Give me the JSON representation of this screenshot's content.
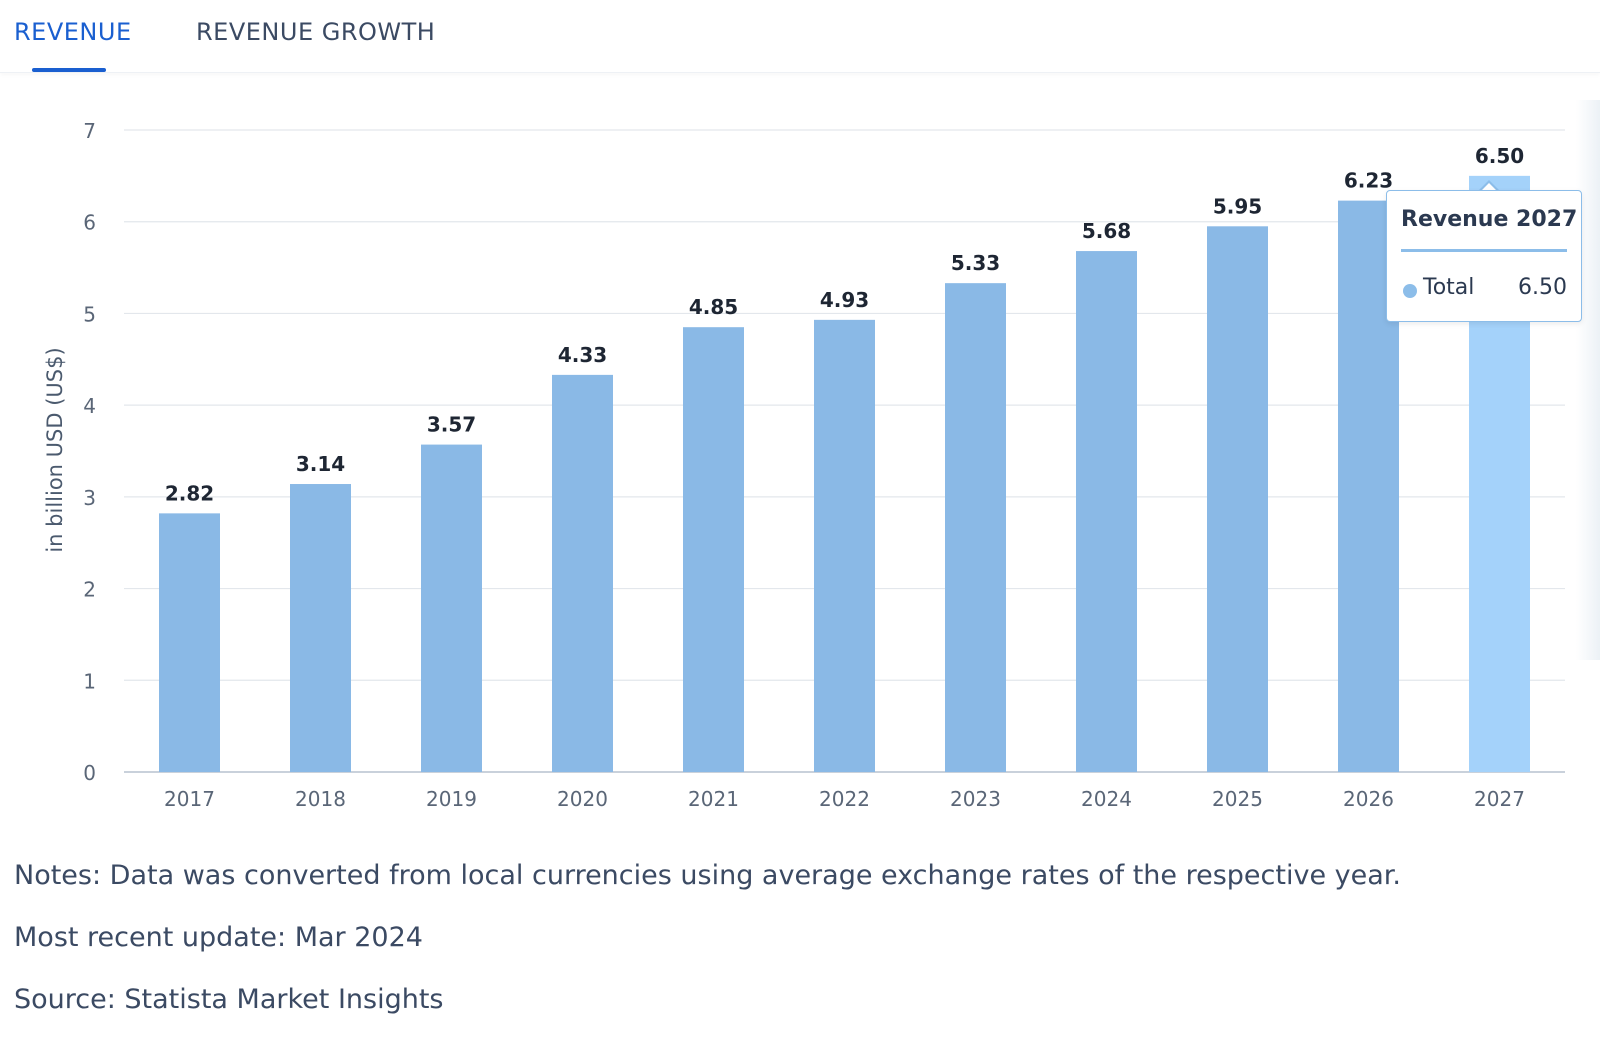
{
  "tabs": [
    {
      "label": "REVENUE",
      "active": true
    },
    {
      "label": "REVENUE GROWTH",
      "active": false
    }
  ],
  "chart_data": {
    "type": "bar",
    "title": "",
    "xlabel": "",
    "ylabel": "in billion USD (US$)",
    "ylim": [
      0,
      7
    ],
    "yticks": [
      0,
      1,
      2,
      3,
      4,
      5,
      6,
      7
    ],
    "grid": true,
    "categories": [
      "2017",
      "2018",
      "2019",
      "2020",
      "2021",
      "2022",
      "2023",
      "2024",
      "2025",
      "2026",
      "2027"
    ],
    "values": [
      2.82,
      3.14,
      3.57,
      4.33,
      4.85,
      4.93,
      5.33,
      5.68,
      5.95,
      6.23,
      6.5
    ],
    "data_labels": [
      "2.82",
      "3.14",
      "3.57",
      "4.33",
      "4.85",
      "4.93",
      "5.33",
      "5.68",
      "5.95",
      "6.23",
      "6.50"
    ],
    "highlighted_category": "2027",
    "colors": {
      "bar": "#8ab9e6",
      "bar_highlight": "#a4d2fa",
      "grid": "#e3e7ec",
      "axis_text": "#5a6677"
    }
  },
  "tooltip": {
    "title": "Revenue 2027",
    "series_label": "Total",
    "value": "6.50"
  },
  "notes": {
    "note": "Notes: Data was converted from local currencies using average exchange rates of the respective year.",
    "update": "Most recent update: Mar 2024",
    "source": "Source: Statista Market Insights"
  }
}
